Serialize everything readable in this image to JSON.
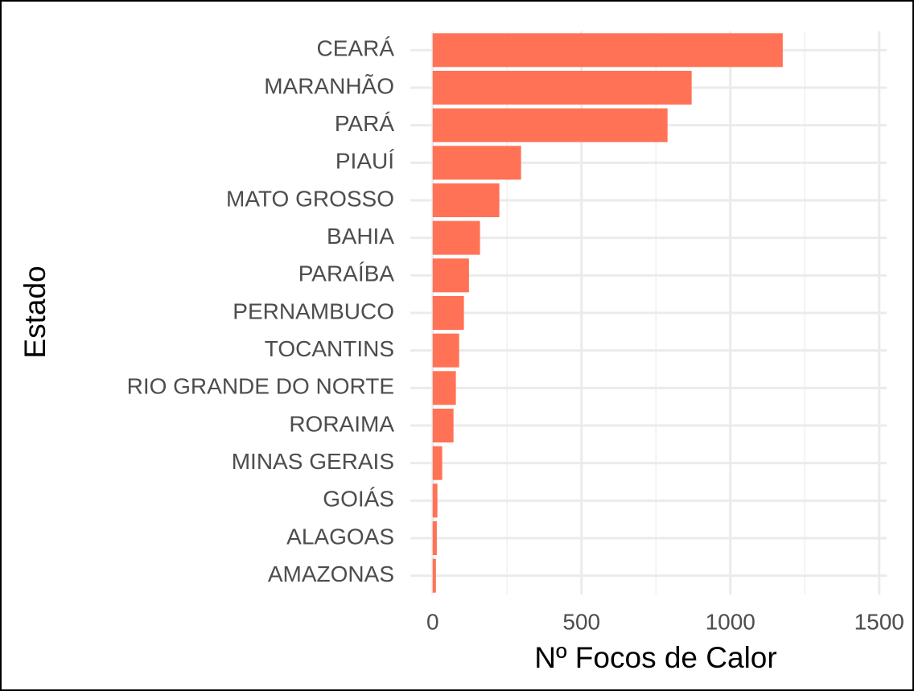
{
  "chart_data": {
    "type": "bar",
    "orientation": "horizontal",
    "x_label": "Nº Focos de Calor",
    "y_label": "Estado",
    "categories": [
      "CEARÁ",
      "MARANHÃO",
      "PARÁ",
      "PIAUÍ",
      "MATO GROSSO",
      "BAHIA",
      "PARAÍBA",
      "PERNAMBUCO",
      "TOCANTINS",
      "RIO GRANDE DO NORTE",
      "RORAIMA",
      "MINAS GERAIS",
      "GOIÁS",
      "ALAGOAS",
      "AMAZONAS"
    ],
    "values": [
      1176,
      870,
      789,
      297,
      224,
      159,
      122,
      105,
      89,
      78,
      70,
      32,
      16,
      14,
      11
    ],
    "color": "#ff7256",
    "xlim": [
      -75,
      1525
    ],
    "xticks": [
      0,
      500,
      1000,
      1500
    ],
    "minor_xticks": [
      250,
      750,
      1250
    ],
    "grid": true
  }
}
